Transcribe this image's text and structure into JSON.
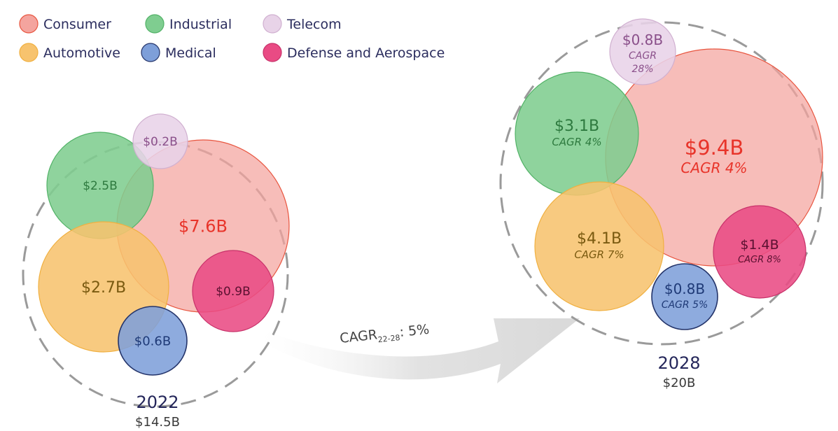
{
  "legend": [
    {
      "key": "consumer",
      "label": "Consumer",
      "color": "#f4a49e"
    },
    {
      "key": "industrial",
      "label": "Industrial",
      "color": "#7fcd90"
    },
    {
      "key": "telecom",
      "label": "Telecom",
      "color": "#e8d3e8"
    },
    {
      "key": "automotive",
      "label": "Automotive",
      "color": "#f7c36e"
    },
    {
      "key": "medical",
      "label": "Medical",
      "color": "#7e9fd9"
    },
    {
      "key": "defense",
      "label": "Defense and Aerospace",
      "color": "#e94b84"
    }
  ],
  "growth_arrow": {
    "label_main": "CAGR",
    "label_sub": "22-28",
    "label_value": ": 5%"
  },
  "chart_data": [
    {
      "type": "bubble",
      "year": "2022",
      "total_label": "$14.5B",
      "total_value_billion": 14.5,
      "bubbles": [
        {
          "key": "consumer",
          "value_billion": 7.6,
          "value_label": "$7.6B",
          "cagr_label": ""
        },
        {
          "key": "industrial",
          "value_billion": 2.5,
          "value_label": "$2.5B",
          "cagr_label": ""
        },
        {
          "key": "telecom",
          "value_billion": 0.2,
          "value_label": "$0.2B",
          "cagr_label": ""
        },
        {
          "key": "automotive",
          "value_billion": 2.7,
          "value_label": "$2.7B",
          "cagr_label": ""
        },
        {
          "key": "medical",
          "value_billion": 0.6,
          "value_label": "$0.6B",
          "cagr_label": ""
        },
        {
          "key": "defense",
          "value_billion": 0.9,
          "value_label": "$0.9B",
          "cagr_label": ""
        }
      ]
    },
    {
      "type": "bubble",
      "year": "2028",
      "total_label": "$20B",
      "total_value_billion": 20,
      "bubbles": [
        {
          "key": "consumer",
          "value_billion": 9.4,
          "value_label": "$9.4B",
          "cagr_label": "CAGR 4%"
        },
        {
          "key": "industrial",
          "value_billion": 3.1,
          "value_label": "$3.1B",
          "cagr_label": "CAGR 4%"
        },
        {
          "key": "telecom",
          "value_billion": 0.8,
          "value_label": "$0.8B",
          "cagr_label": "CAGR 28%"
        },
        {
          "key": "automotive",
          "value_billion": 4.1,
          "value_label": "$4.1B",
          "cagr_label": "CAGR 7%"
        },
        {
          "key": "medical",
          "value_billion": 0.8,
          "value_label": "$0.8B",
          "cagr_label": "CAGR 5%"
        },
        {
          "key": "defense",
          "value_billion": 1.4,
          "value_label": "$1.4B",
          "cagr_label": "CAGR 8%"
        }
      ]
    }
  ]
}
